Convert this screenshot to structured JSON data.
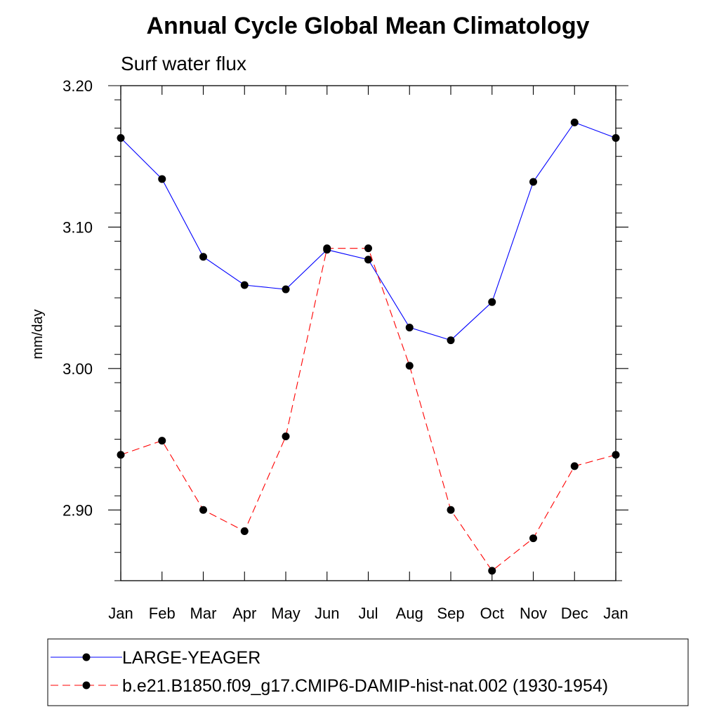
{
  "chart_data": {
    "type": "line",
    "title": "Annual Cycle Global Mean Climatology",
    "subtitle": "Surf water flux",
    "ylabel": "mm/day",
    "xlabel": "",
    "categories": [
      "Jan",
      "Feb",
      "Mar",
      "Apr",
      "May",
      "Jun",
      "Jul",
      "Aug",
      "Sep",
      "Oct",
      "Nov",
      "Dec",
      "Jan"
    ],
    "ylim": [
      2.85,
      3.2
    ],
    "yticks": [
      2.9,
      3.0,
      3.1,
      3.2
    ],
    "ytick_labels": [
      "2.90",
      "3.00",
      "3.10",
      "3.20"
    ],
    "grid": false,
    "legend_position": "bottom",
    "series": [
      {
        "name": "LARGE-YEAGER",
        "color": "#0000ff",
        "line_style": "solid",
        "marker": "filled-circle",
        "values": [
          3.163,
          3.134,
          3.079,
          3.059,
          3.056,
          3.084,
          3.077,
          3.029,
          3.02,
          3.047,
          3.132,
          3.174,
          3.163
        ]
      },
      {
        "name": "b.e21.B1850.f09_g17.CMIP6-DAMIP-hist-nat.002 (1930-1954)",
        "color": "#ff0000",
        "line_style": "dashed",
        "marker": "filled-circle",
        "values": [
          2.939,
          2.949,
          2.9,
          2.885,
          2.952,
          3.085,
          3.085,
          3.002,
          2.9,
          2.857,
          2.88,
          2.931,
          2.939
        ]
      }
    ]
  }
}
